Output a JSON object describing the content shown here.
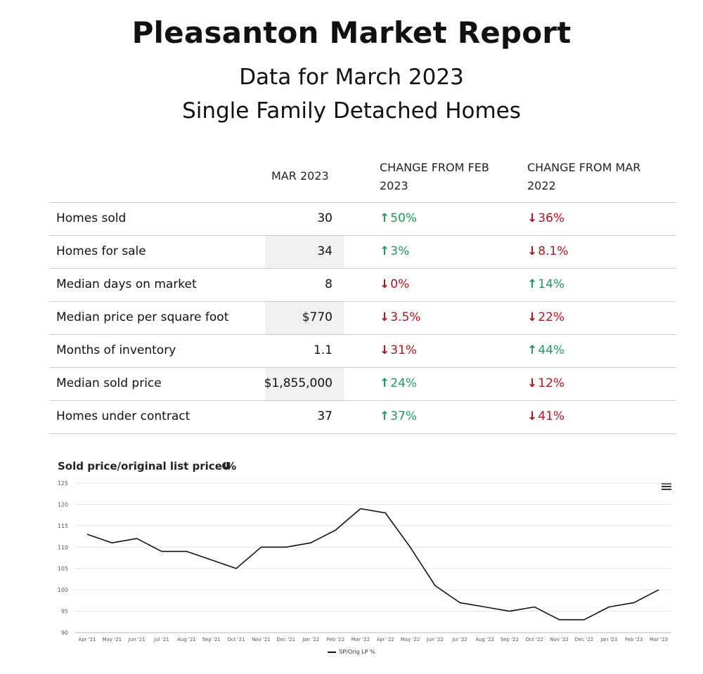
{
  "header": {
    "title": "Pleasanton Market Report",
    "subtitle1": "Data for March 2023",
    "subtitle2": "Single Family Detached Homes"
  },
  "table": {
    "col_value": "MAR 2023",
    "col_change1": "CHANGE FROM FEB 2023",
    "col_change2": "CHANGE FROM MAR 2022",
    "rows": [
      {
        "label": "Homes sold",
        "value": "30",
        "c1_dir": "up",
        "c1": "50%",
        "c2_dir": "down",
        "c2": "36%"
      },
      {
        "label": "Homes for sale",
        "value": "34",
        "c1_dir": "up",
        "c1": "3%",
        "c2_dir": "down",
        "c2": "8.1%"
      },
      {
        "label": "Median days on market",
        "value": "8",
        "c1_dir": "down",
        "c1": "0%",
        "c2_dir": "up",
        "c2": "14%"
      },
      {
        "label": "Median price per square foot",
        "value": "$770",
        "c1_dir": "down",
        "c1": "3.5%",
        "c2_dir": "down",
        "c2": "22%"
      },
      {
        "label": "Months of inventory",
        "value": "1.1",
        "c1_dir": "down",
        "c1": "31%",
        "c2_dir": "up",
        "c2": "44%"
      },
      {
        "label": "Median sold price",
        "value": "$1,855,000",
        "c1_dir": "up",
        "c1": "24%",
        "c2_dir": "down",
        "c2": "12%"
      },
      {
        "label": "Homes under contract",
        "value": "37",
        "c1_dir": "up",
        "c1": "37%",
        "c2_dir": "down",
        "c2": "41%"
      }
    ]
  },
  "colors": {
    "up": "#1f9a5a",
    "down": "#b0141e",
    "line": "#111111",
    "grid": "#e3e3e3"
  },
  "icons": {
    "info": "info-icon",
    "menu": "menu-icon",
    "up": "arrow-up-icon",
    "down": "arrow-down-icon"
  },
  "chart_data": {
    "type": "line",
    "title": "Sold price/original list price %",
    "xlabel": "",
    "ylabel": "",
    "ylim": [
      90,
      125
    ],
    "yticks": [
      90,
      95,
      100,
      105,
      110,
      115,
      120,
      125
    ],
    "grid": true,
    "legend_position": "bottom-center",
    "categories": [
      "Apr '21",
      "May '21",
      "Jun '21",
      "Jul '21",
      "Aug '21",
      "Sep '21",
      "Oct '21",
      "Nov '21",
      "Dec '21",
      "Jan '22",
      "Feb '22",
      "Mar '22",
      "Apr '22",
      "May '22",
      "Jun '22",
      "Jul '22",
      "Aug '22",
      "Sep '22",
      "Oct '22",
      "Nov '22",
      "Dec '22",
      "Jan '23",
      "Feb '23",
      "Mar '23"
    ],
    "series": [
      {
        "name": "SP/Orig LP %",
        "values": [
          113,
          111,
          112,
          109,
          109,
          107,
          105,
          110,
          110,
          111,
          114,
          119,
          118,
          110,
          101,
          97,
          96,
          95,
          96,
          93,
          93,
          96,
          97,
          100
        ]
      }
    ]
  }
}
